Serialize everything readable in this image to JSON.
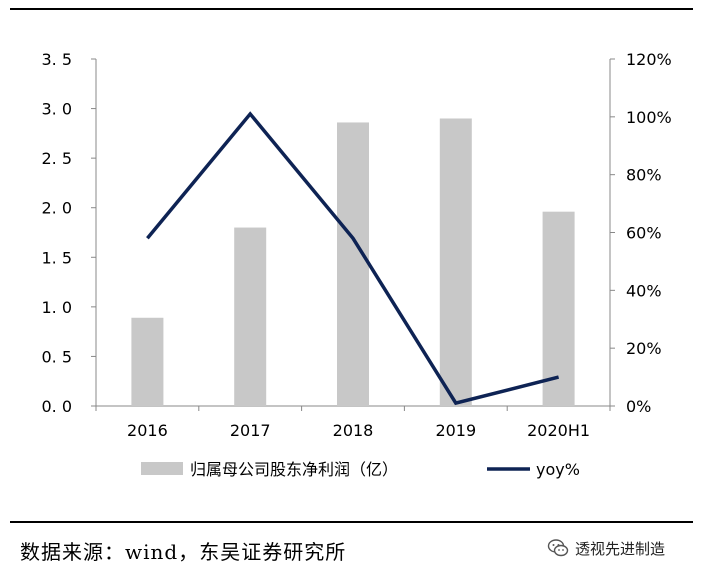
{
  "chart_data": {
    "type": "bar",
    "categories": [
      "2016",
      "2017",
      "2018",
      "2019",
      "2020H1"
    ],
    "series": [
      {
        "name": "归属母公司股东净利润（亿）",
        "type": "bar",
        "axis": "left",
        "values": [
          0.89,
          1.8,
          2.86,
          2.9,
          1.96
        ],
        "color": "#c8c8c8"
      },
      {
        "name": "yoy%",
        "type": "line",
        "axis": "right",
        "values": [
          58,
          101,
          58,
          1,
          10
        ],
        "color": "#0e2354"
      }
    ],
    "y_left": {
      "ticks": [
        "0. 0",
        "0. 5",
        "1. 0",
        "1. 5",
        "2. 0",
        "2. 5",
        "3. 0",
        "3. 5"
      ],
      "ylim": [
        0,
        3.5
      ]
    },
    "y_right": {
      "ticks": [
        "0%",
        "20%",
        "40%",
        "60%",
        "80%",
        "100%",
        "120%"
      ],
      "ylim": [
        0,
        120
      ]
    },
    "legend": {
      "position": "bottom"
    },
    "grid": false
  },
  "source_text": "数据来源：wind，东吴证券研究所",
  "watermark_text": "透视先进制造",
  "watermark_icon": "wechat-icon"
}
